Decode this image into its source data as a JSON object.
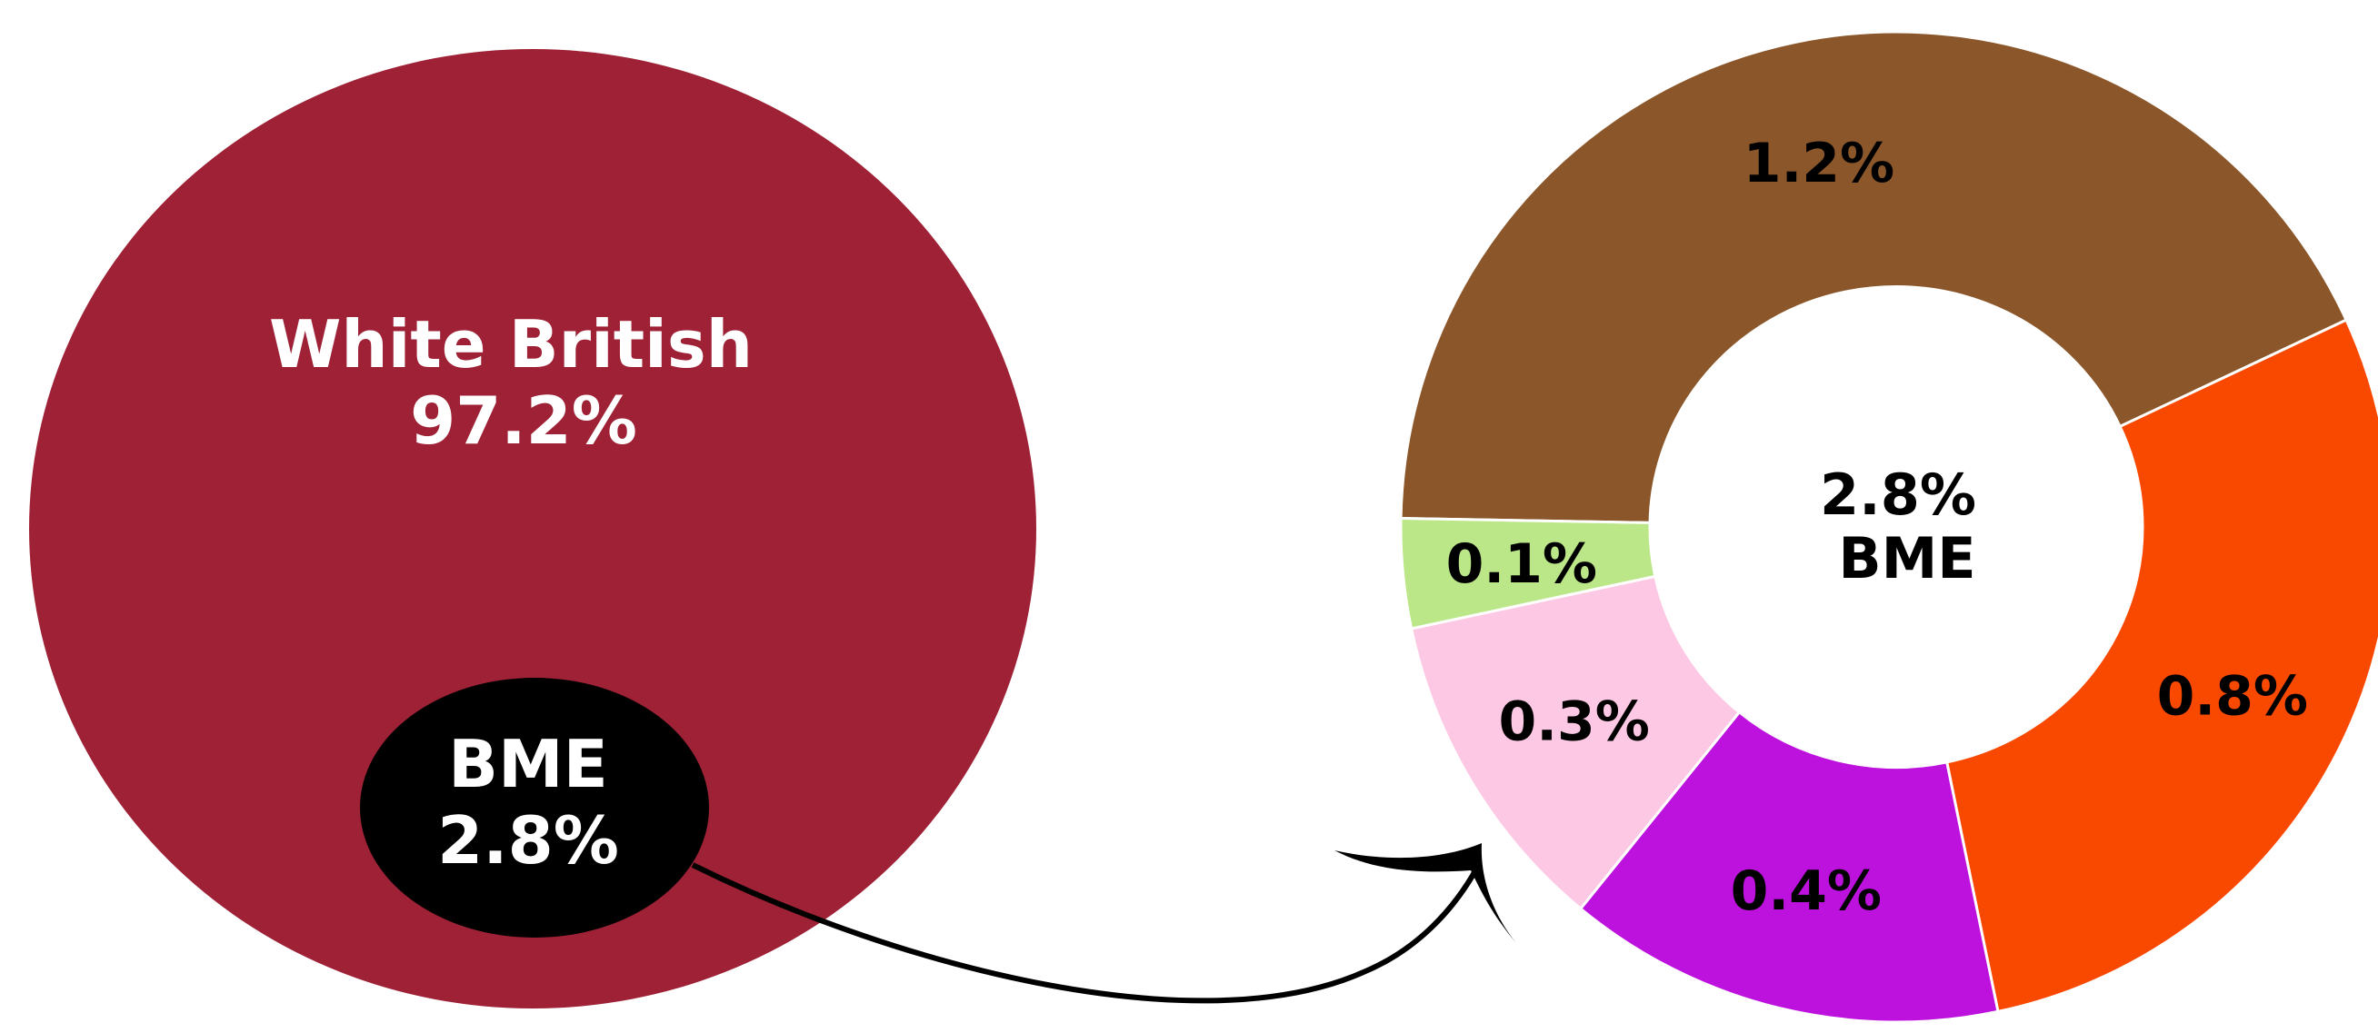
{
  "chart_data": [
    {
      "type": "pie",
      "categories": [
        "White British",
        "BME"
      ],
      "values": [
        97.2,
        2.8
      ],
      "labels": [
        {
          "name": "White British",
          "value": "97.2%"
        },
        {
          "name": "BME",
          "value": "2.8%"
        }
      ],
      "colors": [
        "#9e2136",
        "#000000"
      ],
      "label_colors": [
        "#ffffff",
        "#ffffff"
      ]
    },
    {
      "type": "pie",
      "subtype": "donut",
      "center_label": {
        "value": "2.8%",
        "name": "BME"
      },
      "values": [
        1.2,
        0.8,
        0.4,
        0.3,
        0.1
      ],
      "labels": [
        "1.2%",
        "0.8%",
        "0.4%",
        "0.3%",
        "0.1%"
      ],
      "colors": [
        "#8b572a",
        "#f94800",
        "#bd11de",
        "#fdc8e4",
        "#bce788"
      ],
      "label_color": "#000000"
    }
  ],
  "connector": {
    "from": "BME",
    "to": "donut",
    "color": "#000000"
  }
}
